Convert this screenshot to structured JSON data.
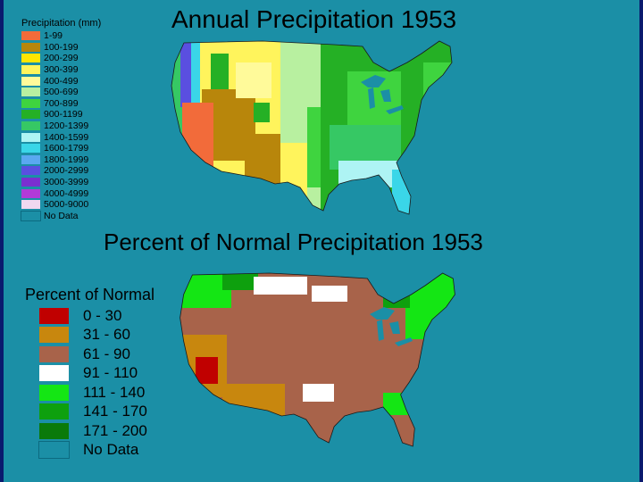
{
  "top": {
    "title": "Annual Precipitation 1953",
    "legend_title": "Precipitation (mm)",
    "legend": [
      {
        "label": "1-99",
        "color": "#f26b3a"
      },
      {
        "label": "100-199",
        "color": "#b8860b"
      },
      {
        "label": "200-299",
        "color": "#ffe600"
      },
      {
        "label": "300-399",
        "color": "#fff45c"
      },
      {
        "label": "400-499",
        "color": "#fffa9a"
      },
      {
        "label": "500-699",
        "color": "#b8f0a0"
      },
      {
        "label": "700-899",
        "color": "#3fd43f"
      },
      {
        "label": "900-1199",
        "color": "#25b025"
      },
      {
        "label": "1200-1399",
        "color": "#36c864"
      },
      {
        "label": "1400-1599",
        "color": "#aef4f4"
      },
      {
        "label": "1600-1799",
        "color": "#3ad6e8"
      },
      {
        "label": "1800-1999",
        "color": "#5aa8f0"
      },
      {
        "label": "2000-2999",
        "color": "#5a4fe0"
      },
      {
        "label": "3000-3999",
        "color": "#7a2fd0"
      },
      {
        "label": "4000-4999",
        "color": "#b23ad8"
      },
      {
        "label": "5000-9000",
        "color": "#f0d8f0"
      },
      {
        "label": "No Data",
        "color": "#1b8fa6"
      }
    ]
  },
  "bottom": {
    "title": "Percent of Normal Precipitation 1953",
    "legend_title": "Percent of Normal",
    "legend": [
      {
        "label": "0 - 30",
        "color": "#c00000"
      },
      {
        "label": "31 - 60",
        "color": "#c8870e"
      },
      {
        "label": "61 - 90",
        "color": "#a8634a"
      },
      {
        "label": "91 - 110",
        "color": "#ffffff"
      },
      {
        "label": "111 - 140",
        "color": "#14e614"
      },
      {
        "label": "141 - 170",
        "color": "#0ea00e"
      },
      {
        "label": "171 - 200",
        "color": "#0a7a0a"
      },
      {
        "label": "No Data",
        "color": "#1b8fa6"
      }
    ]
  }
}
